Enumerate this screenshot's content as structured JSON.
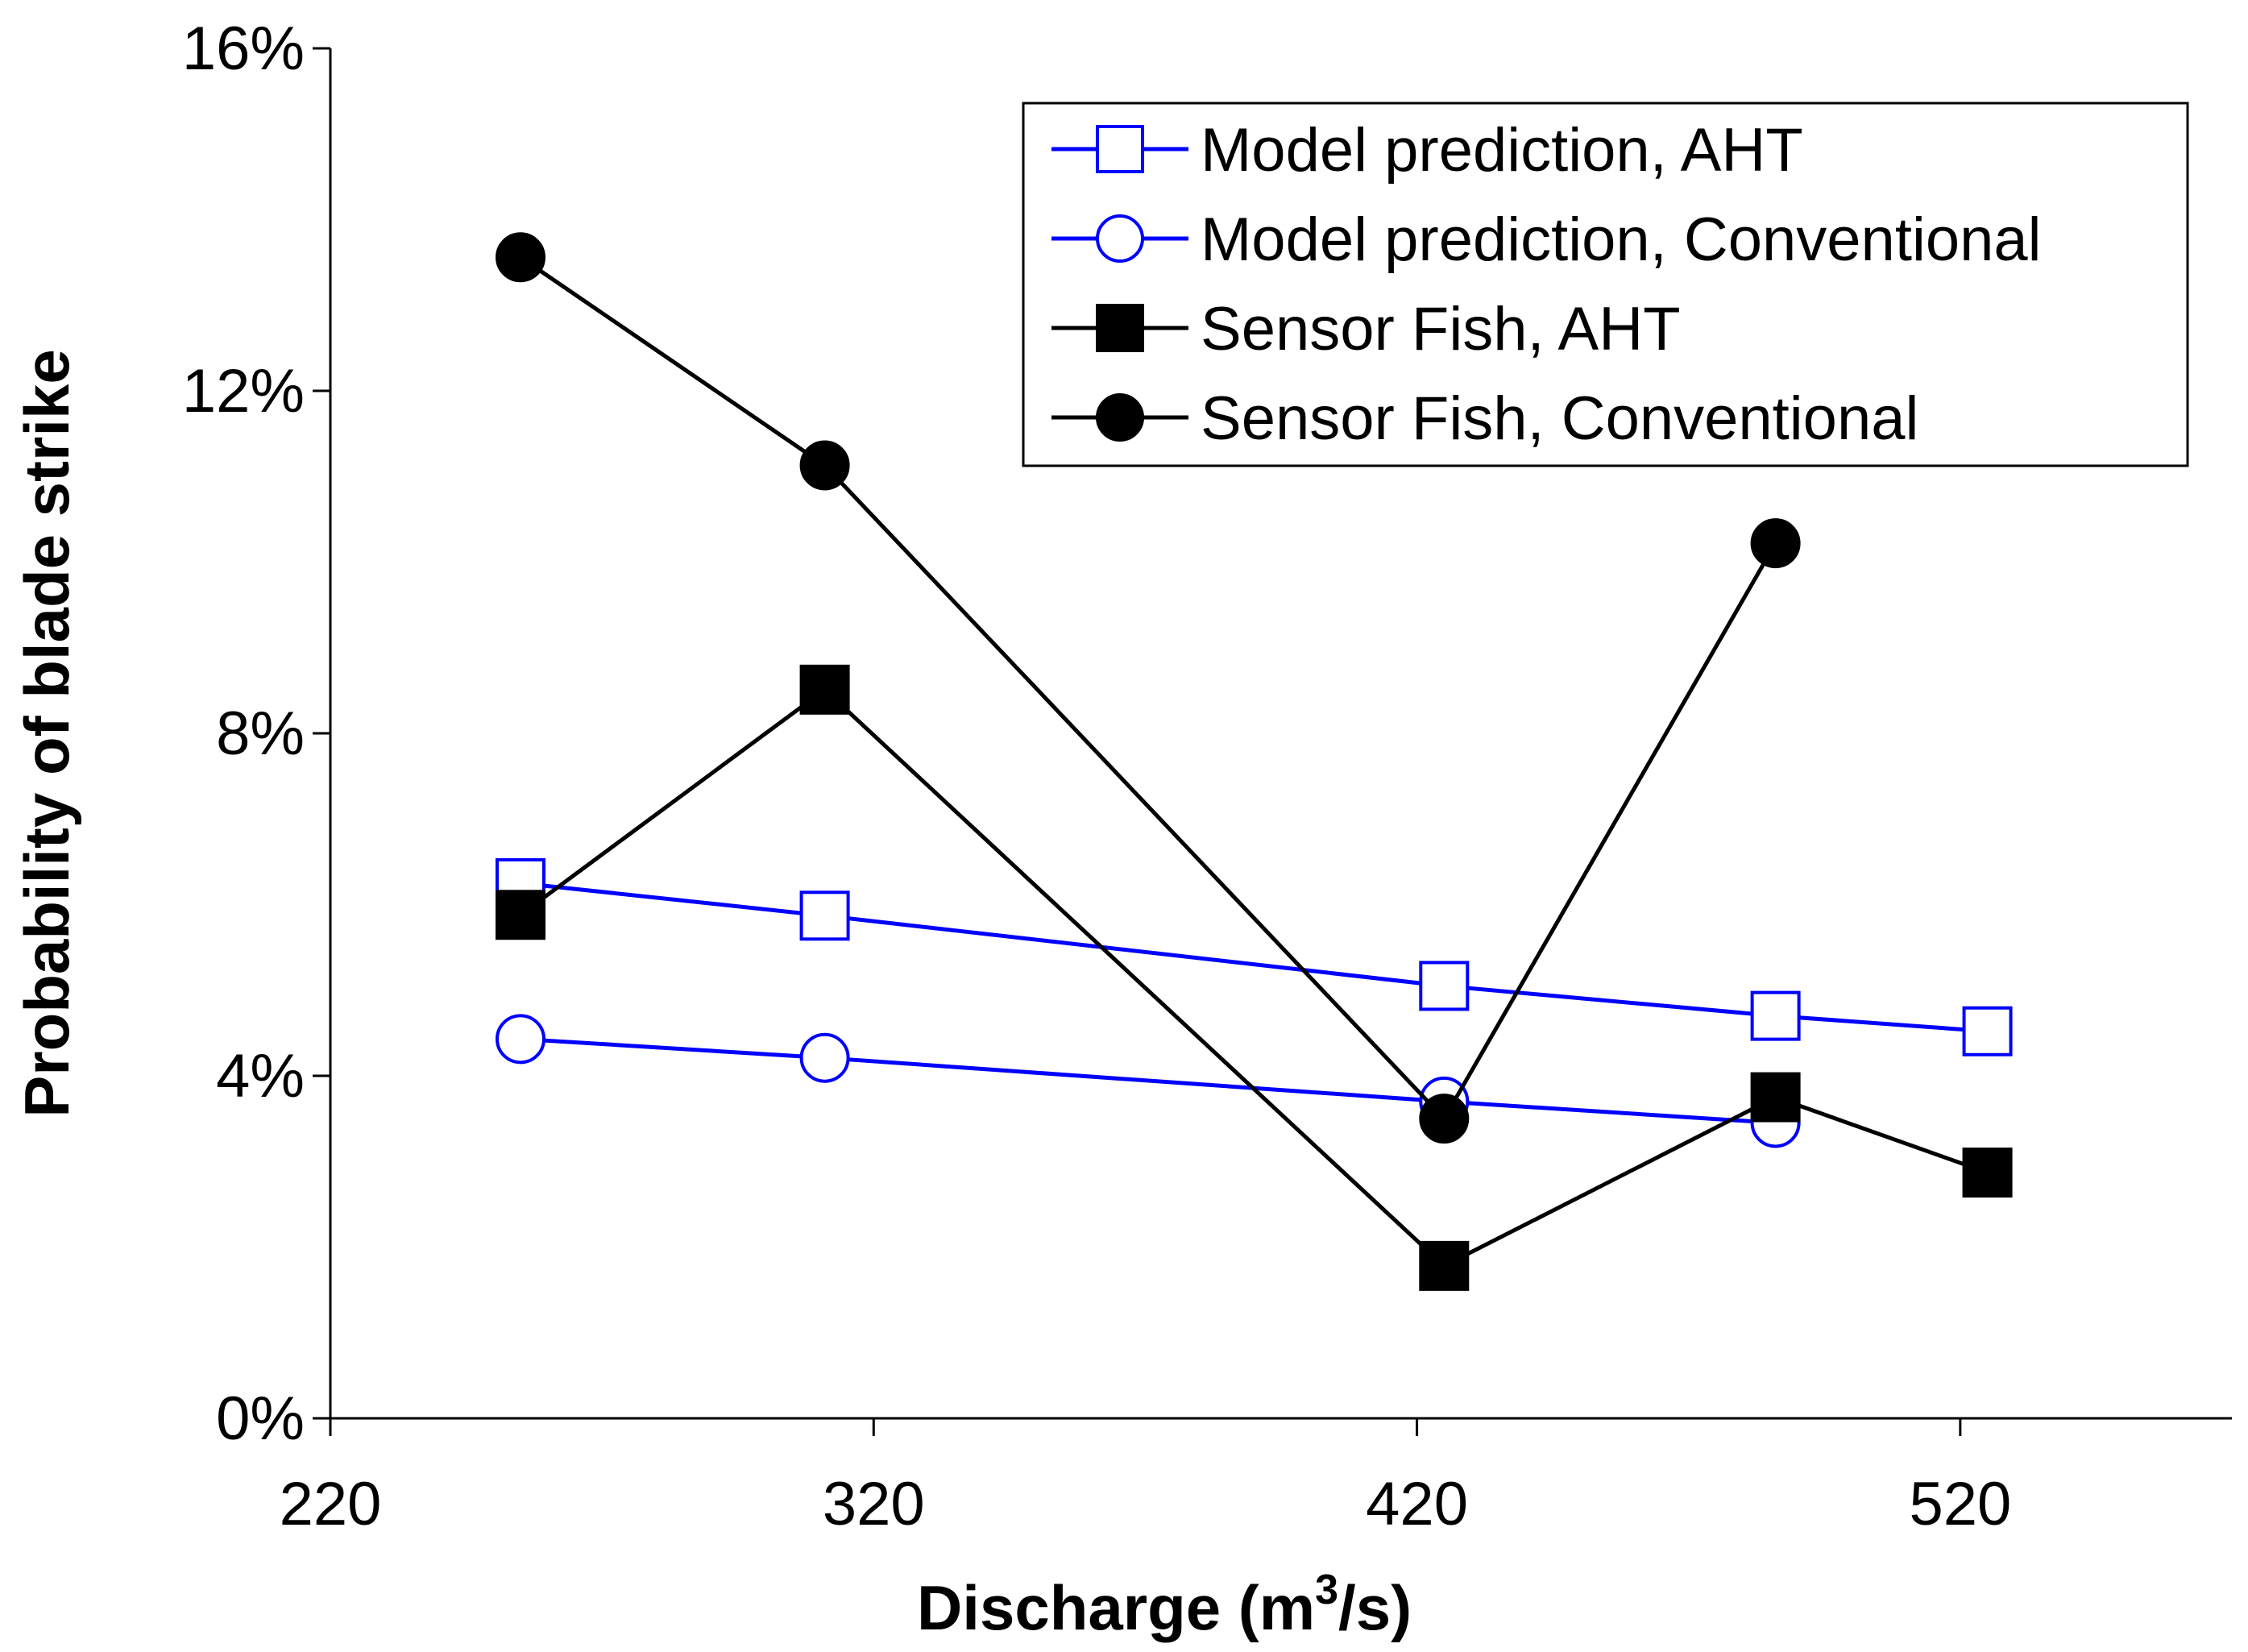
{
  "chart_data": {
    "type": "line",
    "title": "",
    "xlabel": "Discharge (m",
    "xlabel_sup": "3",
    "xlabel_tail": "/s)",
    "ylabel": "Probability of blade strike",
    "xlim": [
      220,
      570
    ],
    "ylim": [
      0,
      0.16
    ],
    "xticks": [
      220,
      320,
      420,
      520
    ],
    "xtick_labels": [
      "220",
      "320",
      "420",
      "520"
    ],
    "yticks": [
      0,
      0.04,
      0.08,
      0.12,
      0.16
    ],
    "ytick_labels": [
      "0%",
      "4%",
      "8%",
      "12%",
      "16%"
    ],
    "grid": false,
    "legend_position": "top-right",
    "series": [
      {
        "name": "Model prediction, AHT",
        "color": "#0000ff",
        "marker": "square",
        "filled": false,
        "x": [
          255,
          311,
          425,
          486,
          525
        ],
        "y": [
          0.0625,
          0.0587,
          0.0505,
          0.047,
          0.0452
        ]
      },
      {
        "name": "Model prediction, Conventional",
        "color": "#0000ff",
        "marker": "circle",
        "filled": false,
        "x": [
          255,
          311,
          425,
          486
        ],
        "y": [
          0.0443,
          0.0421,
          0.037,
          0.0345
        ]
      },
      {
        "name": "Sensor Fish, AHT",
        "color": "#000000",
        "marker": "square",
        "filled": true,
        "x": [
          255,
          311,
          425,
          486,
          525
        ],
        "y": [
          0.0588,
          0.0851,
          0.0178,
          0.0375,
          0.0287
        ]
      },
      {
        "name": "Sensor Fish, Conventional",
        "color": "#000000",
        "marker": "circle",
        "filled": true,
        "x": [
          255,
          311,
          425,
          486
        ],
        "y": [
          0.1356,
          0.1113,
          0.035,
          0.1022
        ]
      }
    ]
  }
}
